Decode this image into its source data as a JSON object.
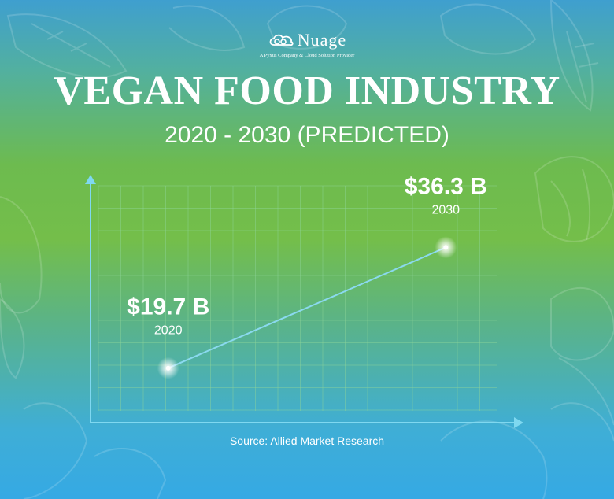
{
  "brand": {
    "name": "Nuage",
    "tagline": "A Pyxus Company & Cloud Solution Provider",
    "logo_icon": "cloud-icon"
  },
  "title": "VEGAN FOOD INDUSTRY",
  "subtitle": "2020 - 2030 (PREDICTED)",
  "source": "Source: Allied Market Research",
  "colors": {
    "axis": "#7fd8f0",
    "line": "#8ad9ef",
    "grid": "#8fd49a",
    "text": "#ffffff"
  },
  "chart_data": {
    "type": "line",
    "x": [
      2020,
      2030
    ],
    "series": [
      {
        "values": [
          19.7,
          36.3
        ],
        "labels": [
          "$19.7 B",
          "$36.3 B"
        ],
        "year_labels": [
          "2020",
          "2030"
        ]
      }
    ],
    "xlim": [
      2017.2,
      2032.8
    ],
    "ylim": [
      12.2,
      46.3
    ],
    "grid": true,
    "legend": "none"
  }
}
